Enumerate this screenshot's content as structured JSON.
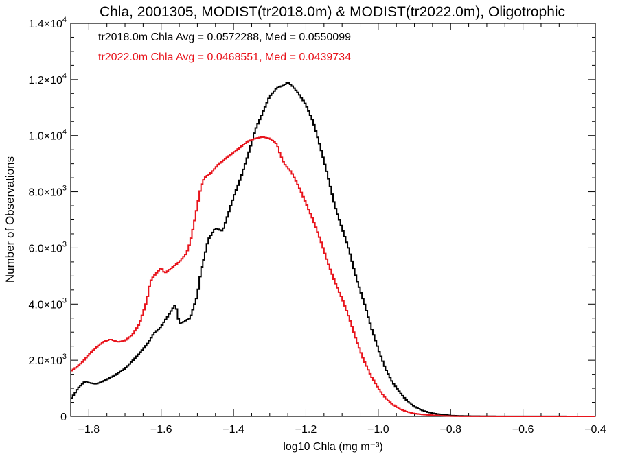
{
  "chart_data": {
    "type": "line",
    "title": "Chla, 2001305, MODIST(tr2018.0m) & MODIST(tr2022.0m), Oligotrophic",
    "xlabel": "log10 Chla (mg m⁻³)",
    "ylabel": "Number of Observations",
    "xlim": [
      -1.85,
      -0.4
    ],
    "ylim": [
      0,
      14000
    ],
    "x_ticks": [
      "−1.8",
      "−1.6",
      "−1.4",
      "−1.2",
      "−1.0",
      "−0.8",
      "−0.6",
      "−0.4"
    ],
    "x_tick_values": [
      -1.8,
      -1.6,
      -1.4,
      -1.2,
      -1.0,
      -0.8,
      -0.6,
      -0.4
    ],
    "y_ticks": [
      {
        "value": 0,
        "mant": "0",
        "exp": ""
      },
      {
        "value": 2000,
        "mant": "2.0×10",
        "exp": "3"
      },
      {
        "value": 4000,
        "mant": "4.0×10",
        "exp": "3"
      },
      {
        "value": 6000,
        "mant": "6.0×10",
        "exp": "3"
      },
      {
        "value": 8000,
        "mant": "8.0×10",
        "exp": "3"
      },
      {
        "value": 10000,
        "mant": "1.0×10",
        "exp": "4"
      },
      {
        "value": 12000,
        "mant": "1.2×10",
        "exp": "4"
      },
      {
        "value": 14000,
        "mant": "1.4×10",
        "exp": "4"
      }
    ],
    "grid": false,
    "annotations": [
      {
        "text": "tr2018.0m Chla Avg = 0.0572288, Med = 0.0550099",
        "color": "#000000"
      },
      {
        "text": "tr2022.0m Chla Avg = 0.0468551, Med = 0.0439734",
        "color": "#e8141c"
      }
    ],
    "series": [
      {
        "color": "#000000",
        "x": [
          -1.85,
          -1.83,
          -1.81,
          -1.8,
          -1.78,
          -1.76,
          -1.73,
          -1.7,
          -1.67,
          -1.64,
          -1.62,
          -1.6,
          -1.58,
          -1.56,
          -1.55,
          -1.54,
          -1.52,
          -1.5,
          -1.49,
          -1.48,
          -1.47,
          -1.45,
          -1.43,
          -1.42,
          -1.4,
          -1.38,
          -1.36,
          -1.34,
          -1.32,
          -1.3,
          -1.28,
          -1.26,
          -1.25,
          -1.24,
          -1.22,
          -1.2,
          -1.18,
          -1.16,
          -1.14,
          -1.12,
          -1.1,
          -1.08,
          -1.06,
          -1.04,
          -1.02,
          -1.0,
          -0.98,
          -0.96,
          -0.94,
          -0.92,
          -0.9,
          -0.88,
          -0.86,
          -0.84,
          -0.82,
          -0.8,
          -0.78,
          -0.76,
          -0.74,
          -0.7,
          -0.6,
          -0.5,
          -0.4
        ],
        "y": [
          600,
          1000,
          1250,
          1200,
          1150,
          1250,
          1450,
          1700,
          2100,
          2550,
          2950,
          3200,
          3600,
          4000,
          3300,
          3350,
          3500,
          4300,
          5200,
          5700,
          6300,
          6700,
          6600,
          7000,
          7800,
          8500,
          9300,
          10200,
          10800,
          11400,
          11700,
          11800,
          11900,
          11800,
          11500,
          11100,
          10500,
          9600,
          8600,
          7500,
          6700,
          5900,
          4900,
          4100,
          3200,
          2400,
          1700,
          1200,
          850,
          550,
          350,
          220,
          140,
          90,
          60,
          30,
          20,
          15,
          10,
          5,
          3,
          2,
          0
        ]
      },
      {
        "color": "#e8141c",
        "x": [
          -1.85,
          -1.82,
          -1.8,
          -1.78,
          -1.76,
          -1.74,
          -1.72,
          -1.7,
          -1.68,
          -1.66,
          -1.64,
          -1.63,
          -1.62,
          -1.6,
          -1.59,
          -1.57,
          -1.55,
          -1.53,
          -1.52,
          -1.51,
          -1.5,
          -1.49,
          -1.48,
          -1.46,
          -1.44,
          -1.42,
          -1.4,
          -1.38,
          -1.36,
          -1.34,
          -1.32,
          -1.3,
          -1.28,
          -1.27,
          -1.26,
          -1.24,
          -1.22,
          -1.2,
          -1.18,
          -1.16,
          -1.14,
          -1.12,
          -1.1,
          -1.08,
          -1.06,
          -1.04,
          -1.02,
          -1.0,
          -0.98,
          -0.96,
          -0.94,
          -0.92,
          -0.9,
          -0.88,
          -0.86,
          -0.84,
          -0.82,
          -0.8,
          -0.78,
          -0.76,
          -0.7,
          -0.6,
          -0.5,
          -0.4
        ],
        "y": [
          1600,
          1900,
          2200,
          2450,
          2650,
          2750,
          2650,
          2700,
          2900,
          3300,
          4100,
          4800,
          5000,
          5300,
          5100,
          5300,
          5500,
          5800,
          6200,
          6800,
          7500,
          8200,
          8500,
          8700,
          9000,
          9200,
          9400,
          9600,
          9800,
          9900,
          9950,
          9900,
          9700,
          9300,
          9000,
          8700,
          8200,
          7600,
          7000,
          6300,
          5500,
          4800,
          4200,
          3500,
          2700,
          2000,
          1450,
          1000,
          650,
          420,
          260,
          160,
          100,
          70,
          50,
          35,
          20,
          10,
          5,
          3,
          2,
          0,
          0,
          0
        ]
      }
    ]
  }
}
